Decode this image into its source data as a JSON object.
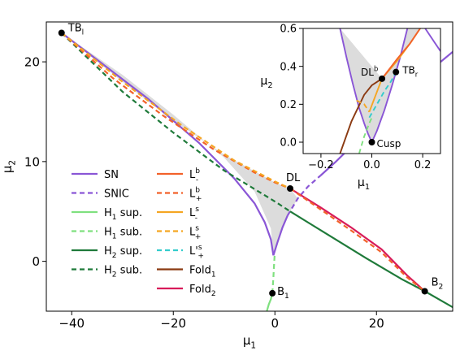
{
  "chart_data": [
    {
      "type": "line",
      "title": "",
      "xlabel_base": "μ",
      "xlabel_sub": "1",
      "ylabel_base": "μ",
      "ylabel_sub": "2",
      "xlim": [
        -45,
        35
      ],
      "ylim": [
        -5,
        24
      ],
      "xticks": [
        -40,
        -20,
        0,
        20
      ],
      "xtick_labels": [
        "−40",
        "−20",
        "0",
        "20"
      ],
      "yticks": [
        0,
        10,
        20
      ],
      "ytick_labels": [
        "0",
        "10",
        "20"
      ],
      "grid": false,
      "legend_position": "center-left",
      "legend": [
        {
          "base": "SN",
          "sub": "",
          "sup": "",
          "color": "#8a56d6",
          "dash": false
        },
        {
          "base": "SNIC",
          "sub": "",
          "sup": "",
          "color": "#8a56d6",
          "dash": true
        },
        {
          "base": "H",
          "sub": "1",
          "sup": "",
          "tail": " sup.",
          "color": "#7fe07f",
          "dash": false
        },
        {
          "base": "H",
          "sub": "1",
          "sup": "",
          "tail": " sub.",
          "color": "#7fe07f",
          "dash": true
        },
        {
          "base": "H",
          "sub": "2",
          "sup": "",
          "tail": " sup.",
          "color": "#1f7a3a",
          "dash": false
        },
        {
          "base": "H",
          "sub": "2",
          "sup": "",
          "tail": " sub.",
          "color": "#1f7a3a",
          "dash": true
        },
        {
          "base": "L",
          "sub": "-",
          "sup": "b",
          "color": "#f2622a",
          "dash": false
        },
        {
          "base": "L",
          "sub": "+",
          "sup": "b",
          "color": "#f2622a",
          "dash": true
        },
        {
          "base": "L",
          "sub": "-",
          "sup": "s",
          "color": "#f5a623",
          "dash": false
        },
        {
          "base": "L",
          "sub": "+",
          "sup": "s",
          "color": "#f5a623",
          "dash": true
        },
        {
          "base": "L'",
          "sub": "+",
          "sup": "s",
          "color": "#33cccc",
          "dash": true
        },
        {
          "base": "Fold",
          "sub": "1",
          "sup": "",
          "color": "#8b3a12",
          "dash": false
        },
        {
          "base": "Fold",
          "sub": "2",
          "sup": "",
          "color": "#d81b5a",
          "dash": false
        }
      ],
      "points": [
        {
          "base": "TB",
          "sub": "l",
          "x": -42,
          "y": 22.9
        },
        {
          "base": "DL",
          "sub": "",
          "x": 3,
          "y": 7.3
        },
        {
          "base": "B",
          "sub": "1",
          "x": -0.5,
          "y": -3.2
        },
        {
          "base": "B",
          "sub": "2",
          "x": 29.5,
          "y": -3
        }
      ],
      "series": [
        {
          "id": "sn-upper",
          "color": "#8a56d6",
          "dash": false,
          "x": [
            -42,
            -35,
            -25,
            -15,
            -8,
            -4,
            -2,
            -0.8,
            -0.3
          ],
          "y": [
            22.9,
            20.2,
            16.3,
            11.9,
            8.3,
            5.8,
            3.9,
            2.2,
            0.6
          ]
        },
        {
          "id": "sn-lower",
          "color": "#8a56d6",
          "dash": false,
          "x": [
            -0.3,
            0.5,
            1.5,
            2.5
          ],
          "y": [
            0.6,
            1.9,
            3.4,
            4.6
          ]
        },
        {
          "id": "snic",
          "color": "#8a56d6",
          "dash": true,
          "x": [
            2.5,
            4.5,
            6.5,
            9
          ],
          "y": [
            4.6,
            6.3,
            7.5,
            8.6
          ]
        },
        {
          "id": "sn-right",
          "color": "#8a56d6",
          "dash": false,
          "x": [
            9,
            12,
            16,
            20,
            23,
            26,
            30,
            35
          ],
          "y": [
            8.6,
            10.0,
            12.0,
            14.1,
            15.7,
            17.0,
            18.9,
            21.0
          ]
        },
        {
          "id": "h1-sup",
          "color": "#7fe07f",
          "dash": false,
          "x": [
            -1.6,
            -1.2,
            -0.8,
            -0.5
          ],
          "y": [
            -5,
            -4.3,
            -3.8,
            -3.2
          ]
        },
        {
          "id": "h1-sub",
          "color": "#7fe07f",
          "dash": true,
          "x": [
            -0.5,
            -0.3,
            -0.15,
            -0.05
          ],
          "y": [
            -3.2,
            -1.6,
            -0.2,
            0.6
          ]
        },
        {
          "id": "h2-sub",
          "color": "#1f7a3a",
          "dash": true,
          "x": [
            -42,
            -30,
            -20,
            -10,
            0,
            3
          ],
          "y": [
            22.9,
            17.0,
            12.9,
            9.1,
            6.0,
            5.0
          ]
        },
        {
          "id": "h2-sup",
          "color": "#1f7a3a",
          "dash": false,
          "x": [
            3,
            10,
            18,
            25,
            29.5,
            35
          ],
          "y": [
            5.0,
            2.8,
            0.3,
            -1.8,
            -3.0,
            -4.6
          ]
        },
        {
          "id": "lb-plus",
          "color": "#f2622a",
          "dash": true,
          "x": [
            -42,
            -32,
            -22,
            -12,
            -4,
            0,
            3
          ],
          "y": [
            22.9,
            18.4,
            14.6,
            11.2,
            8.9,
            7.9,
            7.3
          ]
        },
        {
          "id": "ls-plus",
          "color": "#f5a623",
          "dash": true,
          "x": [
            -42,
            -30,
            -18,
            -8,
            0,
            3
          ],
          "y": [
            22.9,
            18.0,
            13.5,
            10.1,
            8.0,
            7.3
          ]
        },
        {
          "id": "fold2",
          "color": "#d81b5a",
          "dash": false,
          "x": [
            3,
            9,
            15,
            21,
            26,
            29.5
          ],
          "y": [
            7.3,
            5.4,
            3.4,
            1.2,
            -1.4,
            -3.0
          ]
        },
        {
          "id": "lb-right",
          "color": "#f2622a",
          "dash": true,
          "x": [
            3,
            9,
            15,
            21,
            26,
            29.5
          ],
          "y": [
            7.3,
            5.2,
            3.1,
            0.9,
            -1.6,
            -3.0
          ]
        }
      ],
      "fill_region": {
        "x": [
          -42,
          -30,
          -20,
          -10,
          -4,
          -0.8,
          -0.3,
          0.5,
          1.5,
          2.5,
          4.5,
          3,
          0,
          -10,
          -20,
          -30,
          -42
        ],
        "y": [
          22.9,
          18.7,
          14.7,
          10.4,
          7.0,
          3.3,
          0.6,
          1.9,
          3.4,
          4.6,
          6.3,
          7.3,
          7.9,
          10.7,
          14.1,
          18.0,
          22.9
        ]
      },
      "fill_color": "#dcdcdc"
    },
    {
      "type": "line",
      "title": "",
      "inset": true,
      "xlabel_base": "μ",
      "xlabel_sub": "1",
      "ylabel_base": "μ",
      "ylabel_sub": "2",
      "xlim": [
        -0.27,
        0.27
      ],
      "ylim": [
        -0.06,
        0.6
      ],
      "xticks": [
        -0.2,
        0.0,
        0.2
      ],
      "xtick_labels": [
        "−0.2",
        "0.0",
        "0.2"
      ],
      "yticks": [
        0.0,
        0.2,
        0.4,
        0.6
      ],
      "ytick_labels": [
        "0.0",
        "0.2",
        "0.4",
        "0.6"
      ],
      "points": [
        {
          "base": "DL",
          "sub": "",
          "sup": "b",
          "x": 0.04,
          "y": 0.335
        },
        {
          "base": "TB",
          "sub": "r",
          "sup": "",
          "x": 0.095,
          "y": 0.37
        },
        {
          "base": "Cusp",
          "sub": "",
          "sup": "",
          "x": 0,
          "y": 0
        }
      ],
      "series": [
        {
          "id": "sn-left",
          "color": "#8a56d6",
          "dash": false,
          "x": [
            -0.125,
            -0.1,
            -0.075,
            -0.05,
            -0.03,
            -0.015,
            0
          ],
          "y": [
            0.6,
            0.45,
            0.31,
            0.18,
            0.1,
            0.045,
            0
          ]
        },
        {
          "id": "sn-right",
          "color": "#8a56d6",
          "dash": false,
          "x": [
            0,
            0.02,
            0.05,
            0.08,
            0.095,
            0.11,
            0.14
          ],
          "y": [
            0,
            0.06,
            0.17,
            0.3,
            0.37,
            0.44,
            0.6
          ]
        },
        {
          "id": "sn-top",
          "color": "#8a56d6",
          "dash": false,
          "x": [
            0.21,
            0.25,
            0.27
          ],
          "y": [
            0.6,
            0.52,
            0.48
          ]
        },
        {
          "id": "fold1",
          "color": "#8b3a12",
          "dash": false,
          "x": [
            -0.125,
            -0.08,
            -0.03,
            0.0,
            0.04
          ],
          "y": [
            -0.06,
            0.11,
            0.25,
            0.3,
            0.335
          ]
        },
        {
          "id": "h1-sub",
          "color": "#7fe07f",
          "dash": true,
          "x": [
            -0.05,
            -0.03,
            -0.01,
            0
          ],
          "y": [
            -0.06,
            0.03,
            0.1,
            0.13
          ]
        },
        {
          "id": "lsp-prime",
          "color": "#33cccc",
          "dash": true,
          "x": [
            -0.01,
            0.02,
            0.05,
            0.075,
            0.095
          ],
          "y": [
            0.13,
            0.2,
            0.27,
            0.32,
            0.37
          ]
        },
        {
          "id": "ls-minus",
          "color": "#f5a623",
          "dash": false,
          "x": [
            -0.01,
            0.04,
            0.1,
            0.15,
            0.19
          ],
          "y": [
            0.16,
            0.335,
            0.43,
            0.52,
            0.6
          ]
        },
        {
          "id": "lb-minus",
          "color": "#f2622a",
          "dash": false,
          "x": [
            0.04,
            0.1,
            0.15,
            0.19
          ],
          "y": [
            0.335,
            0.44,
            0.52,
            0.6
          ]
        },
        {
          "id": "ls-plus",
          "color": "#f5a623",
          "dash": true,
          "x": [
            -0.06,
            -0.03,
            -0.01
          ],
          "y": [
            0.22,
            0.2,
            0.16
          ]
        }
      ],
      "fill_region": {
        "x": [
          -0.125,
          -0.1,
          -0.075,
          -0.05,
          -0.03,
          -0.015,
          0,
          0.02,
          0.05,
          0.08,
          0.095,
          0.11,
          0.14,
          0.19,
          0.15,
          0.1,
          0.04,
          -0.125
        ],
        "y": [
          0.6,
          0.45,
          0.31,
          0.18,
          0.1,
          0.045,
          0,
          0.06,
          0.17,
          0.3,
          0.37,
          0.44,
          0.6,
          0.6,
          0.52,
          0.43,
          0.335,
          0.6
        ]
      },
      "fill_color": "#dcdcdc"
    }
  ]
}
